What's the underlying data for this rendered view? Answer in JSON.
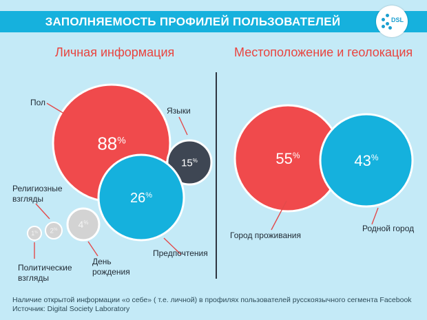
{
  "header": {
    "title": "ЗАПОЛНЯЕМОСТЬ ПРОФИЛЕЙ ПОЛЬЗОВАТЕЛЕЙ",
    "logo_text": "DSL"
  },
  "sections": [
    {
      "title": "Личная информация"
    },
    {
      "title": "Местоположение и геолокация"
    }
  ],
  "labels": {
    "gender": "Пол",
    "languages": "Языки",
    "religious_1": "Религиозные",
    "religious_2": "взгляды",
    "preferences": "Предпочтения",
    "political_1": "Политические",
    "political_2": "взгляды",
    "birthday_1": "День",
    "birthday_2": "рождения",
    "city": "Город проживания",
    "hometown": "Родной город"
  },
  "colors": {
    "red": "#f04a4c",
    "blue": "#15b1dd",
    "dark": "#3e4653",
    "grey": "#d3d3d3",
    "background": "#c4eaf7",
    "banner": "#16b1dd"
  },
  "chart_data": {
    "type": "bubble",
    "title": "ЗАПОЛНЯЕМОСТЬ ПРОФИЛЕЙ ПОЛЬЗОВАТЕЛЕЙ",
    "unit": "%",
    "groups": [
      {
        "name": "Личная информация",
        "items": [
          {
            "label": "Пол",
            "value": 88,
            "color": "red"
          },
          {
            "label": "Языки",
            "value": 15,
            "color": "dark"
          },
          {
            "label": "Предпочтения",
            "value": 26,
            "color": "blue"
          },
          {
            "label": "Религиозные взгляды",
            "value": 2,
            "color": "grey"
          },
          {
            "label": "Политические взгляды",
            "value": 1,
            "color": "grey"
          },
          {
            "label": "День рождения",
            "value": 4,
            "color": "grey"
          }
        ]
      },
      {
        "name": "Местоположение и геолокация",
        "items": [
          {
            "label": "Город проживания",
            "value": 55,
            "color": "red"
          },
          {
            "label": "Родной город",
            "value": 43,
            "color": "blue"
          }
        ]
      }
    ]
  },
  "footer": {
    "description": "Наличие открытой информации «о себе» ( т.е. личной) в профилях пользователей русскоязычного сегмента Facebook",
    "source": "Источник: Digital Society Laboratory"
  }
}
